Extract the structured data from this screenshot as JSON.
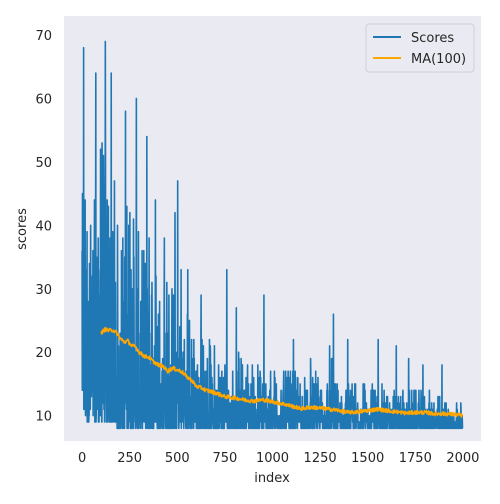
{
  "chart_data": {
    "type": "line",
    "title": "",
    "xlabel": "index",
    "ylabel": "scores",
    "xlim": [
      -95,
      2095
    ],
    "ylim": [
      6,
      73
    ],
    "xticks": [
      0,
      250,
      500,
      750,
      1000,
      1250,
      1500,
      1750,
      2000
    ],
    "yticks": [
      10,
      20,
      30,
      40,
      50,
      60,
      70
    ],
    "grid": false,
    "background": "#eaeaf2",
    "legend_position": "top-right",
    "series": [
      {
        "name": "Scores",
        "color": "#1f77b4",
        "points": 2000,
        "envelope_x": [
          0,
          10,
          50,
          100,
          150,
          200,
          250,
          300,
          350,
          400,
          450,
          500,
          550,
          600,
          700,
          800,
          900,
          1000,
          1100,
          1200,
          1300,
          1400,
          1500,
          1600,
          1700,
          1800,
          1900,
          2000
        ],
        "envelope_low": [
          12,
          9,
          9,
          9,
          9,
          8,
          8,
          8,
          8,
          8,
          8,
          8,
          8,
          8,
          8,
          8,
          8,
          8,
          8,
          8,
          8,
          8,
          8,
          8,
          8,
          8,
          8,
          8
        ],
        "envelope_high": [
          42,
          60,
          40,
          55,
          45,
          40,
          48,
          38,
          40,
          35,
          33,
          32,
          28,
          25,
          22,
          20,
          19,
          18,
          17,
          17,
          16,
          16,
          15,
          15,
          14,
          14,
          13,
          12
        ],
        "peaks": [
          [
            0,
            36
          ],
          [
            3,
            43
          ],
          [
            8,
            68
          ],
          [
            22,
            33
          ],
          [
            45,
            40
          ],
          [
            57,
            36
          ],
          [
            72,
            64
          ],
          [
            85,
            38
          ],
          [
            105,
            53
          ],
          [
            112,
            51
          ],
          [
            122,
            69
          ],
          [
            138,
            43
          ],
          [
            153,
            64
          ],
          [
            170,
            47
          ],
          [
            207,
            36
          ],
          [
            228,
            58
          ],
          [
            245,
            40
          ],
          [
            270,
            41
          ],
          [
            285,
            60
          ],
          [
            340,
            54
          ],
          [
            385,
            44
          ],
          [
            432,
            38
          ],
          [
            488,
            42
          ],
          [
            502,
            47
          ],
          [
            520,
            33
          ],
          [
            555,
            33
          ],
          [
            625,
            29
          ],
          [
            760,
            33
          ],
          [
            810,
            27
          ],
          [
            955,
            29
          ],
          [
            1110,
            22
          ],
          [
            1200,
            19
          ],
          [
            1300,
            21
          ],
          [
            1310,
            19
          ],
          [
            1315,
            19
          ],
          [
            1320,
            26
          ],
          [
            1395,
            22
          ],
          [
            1555,
            22
          ],
          [
            1650,
            21
          ],
          [
            1715,
            19
          ],
          [
            1790,
            18
          ],
          [
            1890,
            18
          ],
          [
            2000,
            13
          ]
        ]
      },
      {
        "name": "MA(100)",
        "color": "#ffa500",
        "x": [
          100,
          120,
          140,
          160,
          180,
          200,
          220,
          240,
          260,
          280,
          300,
          325,
          350,
          375,
          400,
          425,
          450,
          475,
          500,
          525,
          550,
          575,
          600,
          625,
          650,
          700,
          750,
          800,
          850,
          900,
          950,
          1000,
          1050,
          1100,
          1150,
          1200,
          1250,
          1300,
          1350,
          1400,
          1450,
          1500,
          1550,
          1600,
          1650,
          1700,
          1750,
          1800,
          1850,
          1900,
          1950,
          2000
        ],
        "values": [
          23.0,
          23.6,
          23.4,
          23.5,
          23.1,
          22.2,
          21.6,
          21.8,
          21.0,
          20.9,
          20.0,
          19.4,
          19.2,
          18.5,
          18.0,
          17.8,
          17.0,
          17.5,
          17.2,
          16.9,
          16.1,
          15.6,
          14.6,
          14.4,
          14.0,
          13.6,
          13.0,
          12.8,
          12.5,
          12.3,
          12.5,
          12.2,
          11.9,
          11.5,
          11.1,
          11.3,
          11.2,
          11.0,
          10.8,
          10.5,
          10.6,
          10.8,
          11.0,
          10.8,
          10.6,
          10.4,
          10.5,
          10.5,
          10.3,
          10.3,
          10.2,
          10.0
        ]
      }
    ]
  }
}
